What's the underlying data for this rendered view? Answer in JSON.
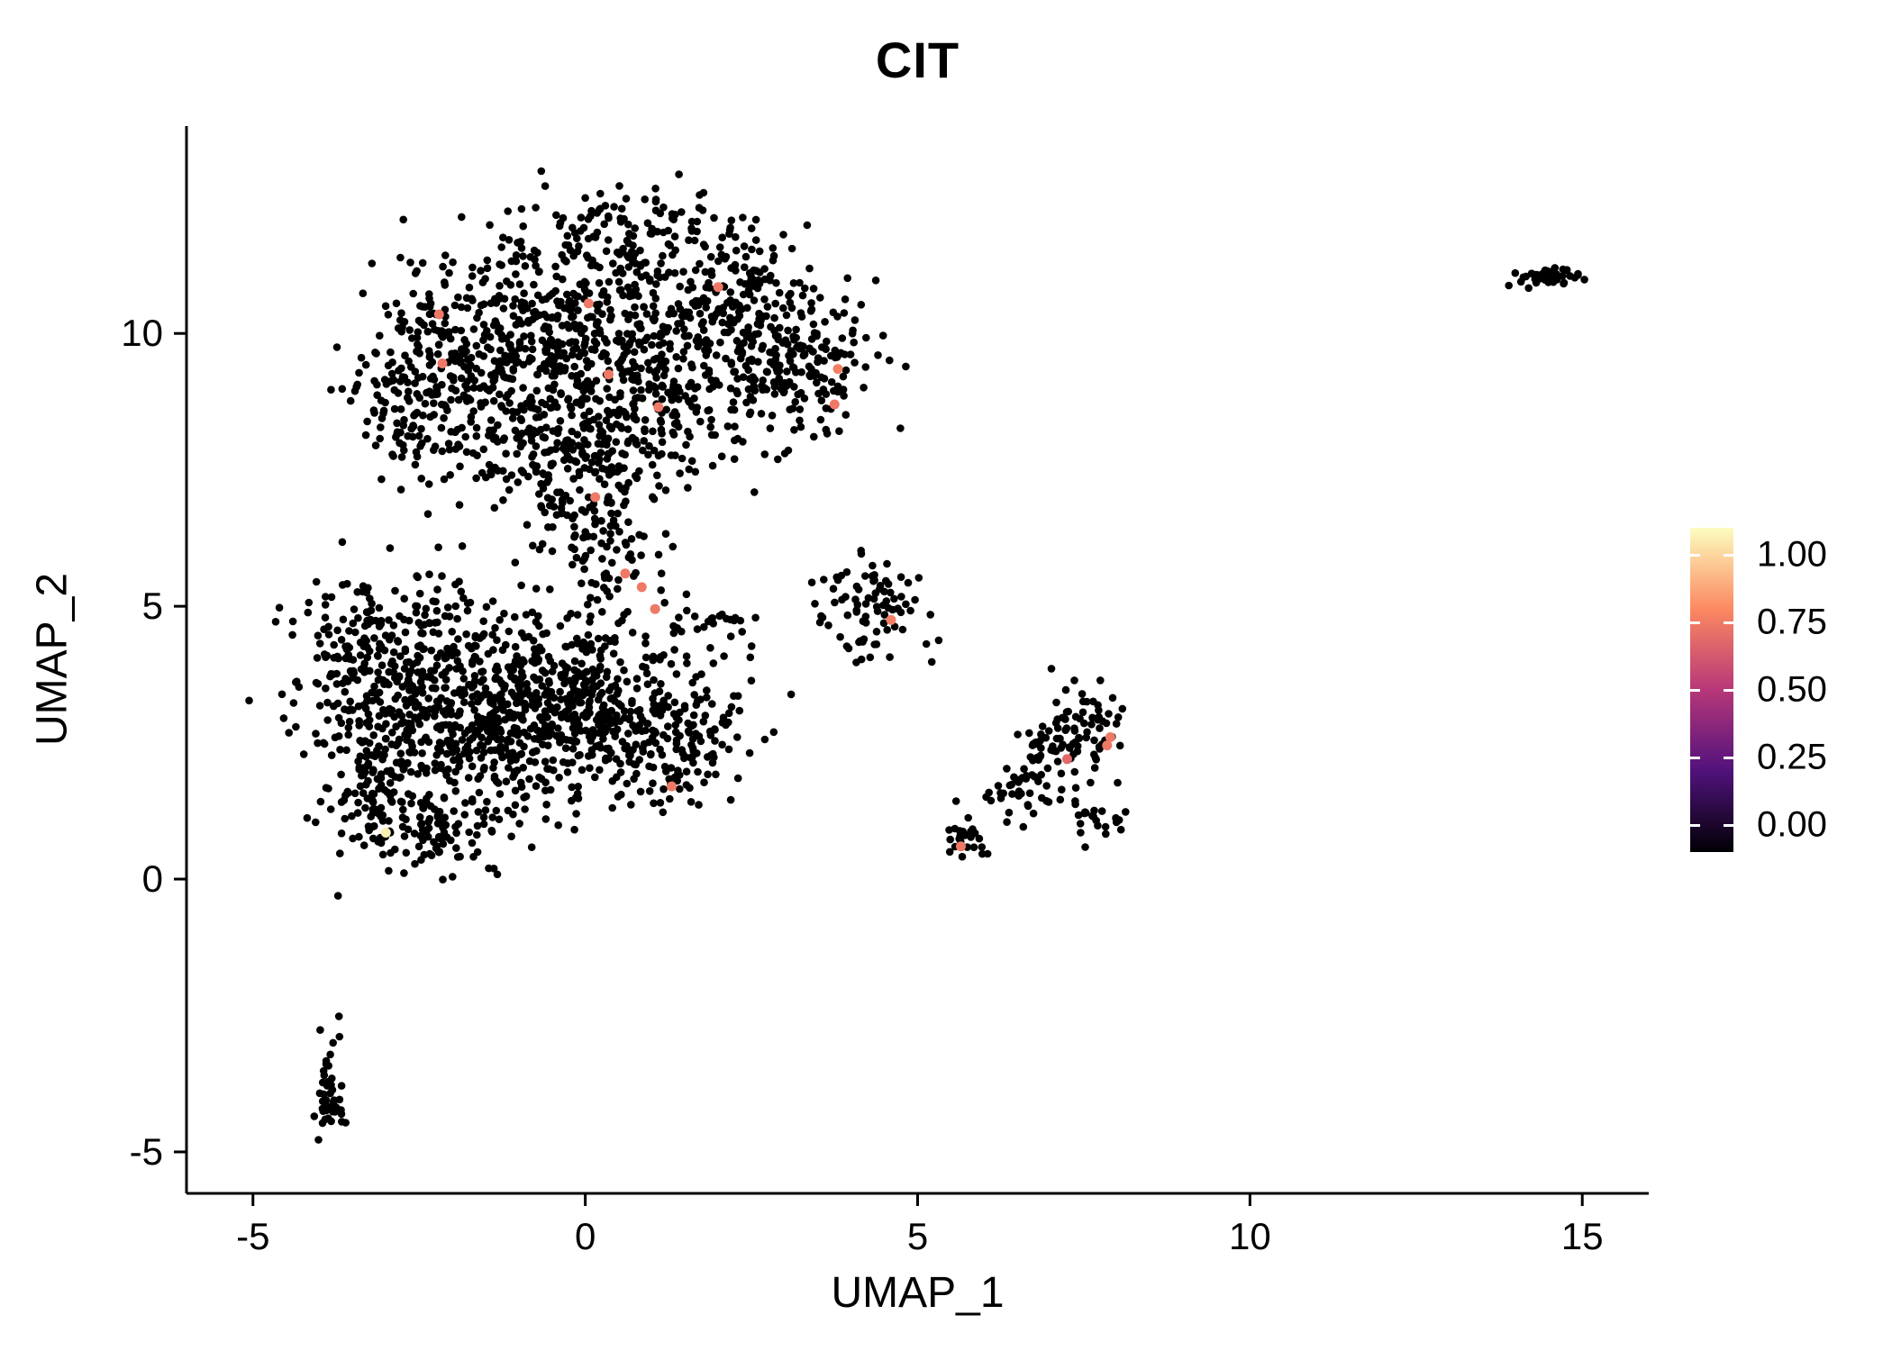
{
  "chart_data": {
    "type": "scatter",
    "title": "CIT",
    "xlabel": "UMAP_1",
    "ylabel": "UMAP_2",
    "xlim": [
      -6.0,
      16.0
    ],
    "ylim": [
      -5.76,
      13.8
    ],
    "xticks": [
      -5,
      0,
      5,
      10,
      15
    ],
    "yticks": [
      -5,
      0,
      5,
      10
    ],
    "grid": false,
    "point_color": "#000000",
    "point_radius": 4.3,
    "highlight_radius": 5.5,
    "seed": 42,
    "legend": {
      "position": "right",
      "labels": [
        "1.00",
        "0.75",
        "0.50",
        "0.25",
        "0.00"
      ],
      "values": [
        1,
        0.75,
        0.5,
        0.25,
        0
      ],
      "stops": [
        [
          0,
          "#000004"
        ],
        [
          0.25,
          "#51127C"
        ],
        [
          0.5,
          "#B73779"
        ],
        [
          0.75,
          "#FC8961"
        ],
        [
          1,
          "#FCFDBF"
        ]
      ]
    },
    "clusters": [
      {
        "cx": -1.9,
        "cy": 9.8,
        "sx": 0.85,
        "sy": 0.75,
        "n": 240
      },
      {
        "cx": 0.0,
        "cy": 10.4,
        "sx": 1.1,
        "sy": 0.85,
        "n": 300
      },
      {
        "cx": 0.5,
        "cy": 9.0,
        "sx": 1.25,
        "sy": 0.85,
        "n": 340
      },
      {
        "cx": 2.4,
        "cy": 10.4,
        "sx": 0.75,
        "sy": 0.75,
        "n": 190
      },
      {
        "cx": 3.2,
        "cy": 9.3,
        "sx": 0.55,
        "sy": 0.65,
        "n": 140
      },
      {
        "cx": -0.4,
        "cy": 7.9,
        "sx": 1.0,
        "sy": 0.55,
        "n": 190
      },
      {
        "cx": 0.9,
        "cy": 11.9,
        "sx": 0.75,
        "sy": 0.4,
        "n": 90
      },
      {
        "cx": -2.75,
        "cy": 8.4,
        "sx": 0.4,
        "sy": 0.55,
        "n": 60
      },
      {
        "cx": -0.1,
        "cy": 6.8,
        "sx": 0.5,
        "sy": 0.5,
        "n": 70
      },
      {
        "cx": 0.4,
        "cy": 5.9,
        "sx": 0.35,
        "sy": 0.45,
        "n": 45
      },
      {
        "cx": -2.5,
        "cy": 3.8,
        "sx": 0.85,
        "sy": 0.8,
        "n": 300
      },
      {
        "cx": -1.5,
        "cy": 2.8,
        "sx": 0.95,
        "sy": 0.85,
        "n": 340
      },
      {
        "cx": -0.3,
        "cy": 3.5,
        "sx": 0.85,
        "sy": 0.75,
        "n": 240
      },
      {
        "cx": 0.5,
        "cy": 2.8,
        "sx": 0.75,
        "sy": 0.6,
        "n": 170
      },
      {
        "cx": -3.2,
        "cy": 2.1,
        "sx": 0.55,
        "sy": 0.75,
        "n": 120
      },
      {
        "cx": -2.5,
        "cy": 0.9,
        "sx": 0.65,
        "sy": 0.45,
        "n": 110
      },
      {
        "cx": 1.3,
        "cy": 2.1,
        "sx": 0.5,
        "sy": 0.4,
        "n": 60
      },
      {
        "cx": -3.5,
        "cy": 4.6,
        "sx": 0.35,
        "sy": 0.55,
        "n": 55
      },
      {
        "cx": 2.0,
        "cy": 2.8,
        "sx": 0.3,
        "sy": 0.35,
        "n": 25
      },
      {
        "cx": 4.3,
        "cy": 5.0,
        "sx": 0.4,
        "sy": 0.5,
        "n": 85
      },
      {
        "cx": 1.9,
        "cy": 4.7,
        "sx": 0.35,
        "sy": 0.15,
        "n": 22
      },
      {
        "cx": 1.8,
        "cy": 3.7,
        "sx": 0.5,
        "sy": 0.5,
        "n": 18
      },
      {
        "cx": 5.8,
        "cy": 0.75,
        "sx": 0.22,
        "sy": 0.22,
        "n": 28
      },
      {
        "cx": 6.5,
        "cy": 1.5,
        "sx": 0.28,
        "sy": 0.3,
        "n": 30
      },
      {
        "cx": 7.1,
        "cy": 2.2,
        "sx": 0.33,
        "sy": 0.38,
        "n": 55
      },
      {
        "cx": 7.5,
        "cy": 2.9,
        "sx": 0.28,
        "sy": 0.38,
        "n": 50
      },
      {
        "cx": 7.7,
        "cy": 1.1,
        "sx": 0.22,
        "sy": 0.28,
        "n": 22
      },
      {
        "cx": 14.45,
        "cy": 11.05,
        "sx": 0.24,
        "sy": 0.1,
        "n": 48
      },
      {
        "cx": -3.85,
        "cy": -3.85,
        "sx": 0.1,
        "sy": 0.4,
        "n": 48
      }
    ],
    "highlights": [
      {
        "x": -2.2,
        "y": 10.35,
        "v": 0.7
      },
      {
        "x": -2.15,
        "y": 9.45,
        "v": 0.7
      },
      {
        "x": 0.05,
        "y": 10.55,
        "v": 0.7
      },
      {
        "x": 2.0,
        "y": 10.85,
        "v": 0.7
      },
      {
        "x": 0.35,
        "y": 9.25,
        "v": 0.7
      },
      {
        "x": 3.8,
        "y": 9.35,
        "v": 0.72
      },
      {
        "x": 3.75,
        "y": 8.7,
        "v": 0.7
      },
      {
        "x": 1.1,
        "y": 8.65,
        "v": 0.7
      },
      {
        "x": 0.15,
        "y": 7.0,
        "v": 0.7
      },
      {
        "x": 0.6,
        "y": 5.6,
        "v": 0.7
      },
      {
        "x": 0.85,
        "y": 5.35,
        "v": 0.7
      },
      {
        "x": 1.05,
        "y": 4.95,
        "v": 0.7
      },
      {
        "x": 4.6,
        "y": 4.75,
        "v": 0.72
      },
      {
        "x": 1.3,
        "y": 1.7,
        "v": 0.7
      },
      {
        "x": -3.0,
        "y": 0.85,
        "v": 0.97
      },
      {
        "x": 5.65,
        "y": 0.6,
        "v": 0.7
      },
      {
        "x": 7.25,
        "y": 2.2,
        "v": 0.65
      },
      {
        "x": 7.9,
        "y": 2.6,
        "v": 0.7
      },
      {
        "x": 7.85,
        "y": 2.45,
        "v": 0.7
      }
    ]
  }
}
